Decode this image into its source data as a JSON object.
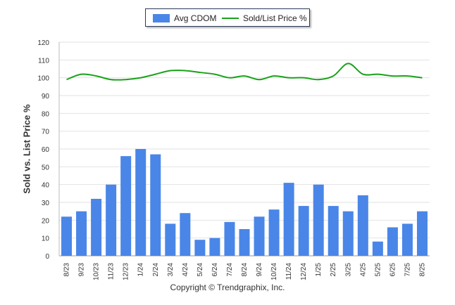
{
  "chart_data": {
    "type": "bar",
    "categories": [
      "8/23",
      "9/23",
      "10/23",
      "11/23",
      "12/23",
      "1/24",
      "2/24",
      "3/24",
      "4/24",
      "5/24",
      "6/24",
      "7/24",
      "8/24",
      "9/24",
      "10/24",
      "11/24",
      "12/24",
      "1/25",
      "2/25",
      "3/25",
      "4/25",
      "5/25",
      "6/25",
      "7/25",
      "8/25"
    ],
    "series": [
      {
        "name": "Avg CDOM",
        "type": "bar",
        "color": "#4a86e8",
        "values": [
          22,
          25,
          32,
          40,
          56,
          60,
          57,
          18,
          24,
          9,
          10,
          19,
          15,
          22,
          26,
          41,
          28,
          40,
          28,
          25,
          34,
          8,
          16,
          18,
          25
        ]
      },
      {
        "name": "Sold/List Price %",
        "type": "line",
        "color": "#1aa11a",
        "values": [
          99,
          102,
          101,
          99,
          99,
          100,
          102,
          104,
          104,
          103,
          102,
          100,
          101,
          99,
          101,
          100,
          100,
          99,
          101,
          108,
          102,
          102,
          101,
          101,
          100
        ]
      }
    ],
    "ylabel": "Sold vs. List Price %",
    "ylim": [
      0,
      120
    ],
    "yticks": [
      0,
      10,
      20,
      30,
      40,
      50,
      60,
      70,
      80,
      90,
      100,
      110,
      120
    ],
    "grid": true,
    "legend_position": "top-center"
  },
  "copyright": "Copyright © Trendgraphix, Inc."
}
